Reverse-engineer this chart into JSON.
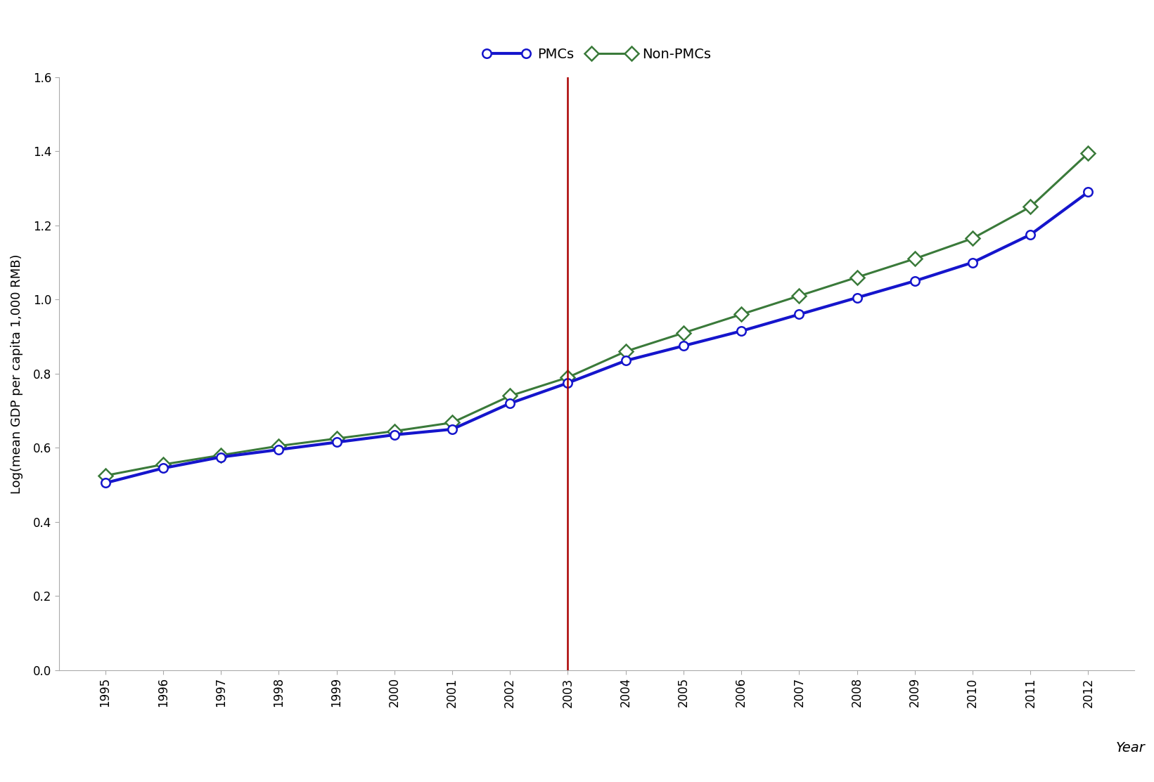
{
  "years": [
    1995,
    1996,
    1997,
    1998,
    1999,
    2000,
    2001,
    2002,
    2003,
    2004,
    2005,
    2006,
    2007,
    2008,
    2009,
    2010,
    2011,
    2012
  ],
  "pmc_values": [
    0.505,
    0.545,
    0.575,
    0.595,
    0.615,
    0.635,
    0.65,
    0.72,
    0.775,
    0.835,
    0.875,
    0.915,
    0.96,
    1.005,
    1.05,
    1.1,
    1.175,
    1.29
  ],
  "non_pmc_values": [
    0.525,
    0.555,
    0.58,
    0.605,
    0.625,
    0.645,
    0.668,
    0.74,
    0.79,
    0.86,
    0.91,
    0.96,
    1.01,
    1.06,
    1.11,
    1.165,
    1.25,
    1.395
  ],
  "pmc_color": "#1515cc",
  "non_pmc_color": "#3a7a3a",
  "vline_x": 2003,
  "vline_color": "#aa0000",
  "xlabel": "Year",
  "ylabel": "Log(mean GDP per capita 1,000 RMB)",
  "ylim": [
    0.0,
    1.6
  ],
  "yticks": [
    0.0,
    0.2,
    0.4,
    0.6,
    0.8,
    1.0,
    1.2,
    1.4,
    1.6
  ],
  "legend_pmc": "PMCs",
  "legend_non_pmc": "Non-PMCs",
  "background_color": "#ffffff",
  "axis_fontsize": 14,
  "tick_fontsize": 12,
  "legend_fontsize": 14,
  "ylabel_fontsize": 13
}
